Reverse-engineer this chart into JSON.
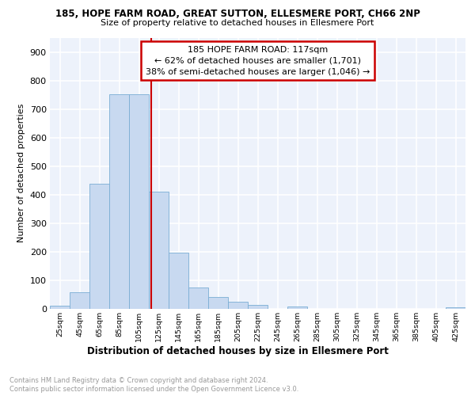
{
  "title1": "185, HOPE FARM ROAD, GREAT SUTTON, ELLESMERE PORT, CH66 2NP",
  "title2": "Size of property relative to detached houses in Ellesmere Port",
  "xlabel": "Distribution of detached houses by size in Ellesmere Port",
  "ylabel": "Number of detached properties",
  "bin_labels": [
    "25sqm",
    "45sqm",
    "65sqm",
    "85sqm",
    "105sqm",
    "125sqm",
    "145sqm",
    "165sqm",
    "185sqm",
    "205sqm",
    "225sqm",
    "245sqm",
    "265sqm",
    "285sqm",
    "305sqm",
    "325sqm",
    "345sqm",
    "365sqm",
    "385sqm",
    "405sqm",
    "425sqm"
  ],
  "bin_values": [
    10,
    58,
    438,
    752,
    752,
    410,
    197,
    75,
    42,
    26,
    13,
    0,
    7,
    0,
    0,
    0,
    0,
    0,
    0,
    0,
    5
  ],
  "bar_color": "#c8d9f0",
  "bar_edge_color": "#7aadd4",
  "vline_x": 117,
  "vline_color": "#cc0000",
  "annotation_title": "185 HOPE FARM ROAD: 117sqm",
  "annotation_line1": "← 62% of detached houses are smaller (1,701)",
  "annotation_line2": "38% of semi-detached houses are larger (1,046) →",
  "annotation_box_color": "#cc0000",
  "ylim": [
    0,
    950
  ],
  "yticks": [
    0,
    100,
    200,
    300,
    400,
    500,
    600,
    700,
    800,
    900
  ],
  "footnote1": "Contains HM Land Registry data © Crown copyright and database right 2024.",
  "footnote2": "Contains public sector information licensed under the Open Government Licence v3.0.",
  "bg_color": "#edf2fb",
  "grid_color": "#ffffff"
}
